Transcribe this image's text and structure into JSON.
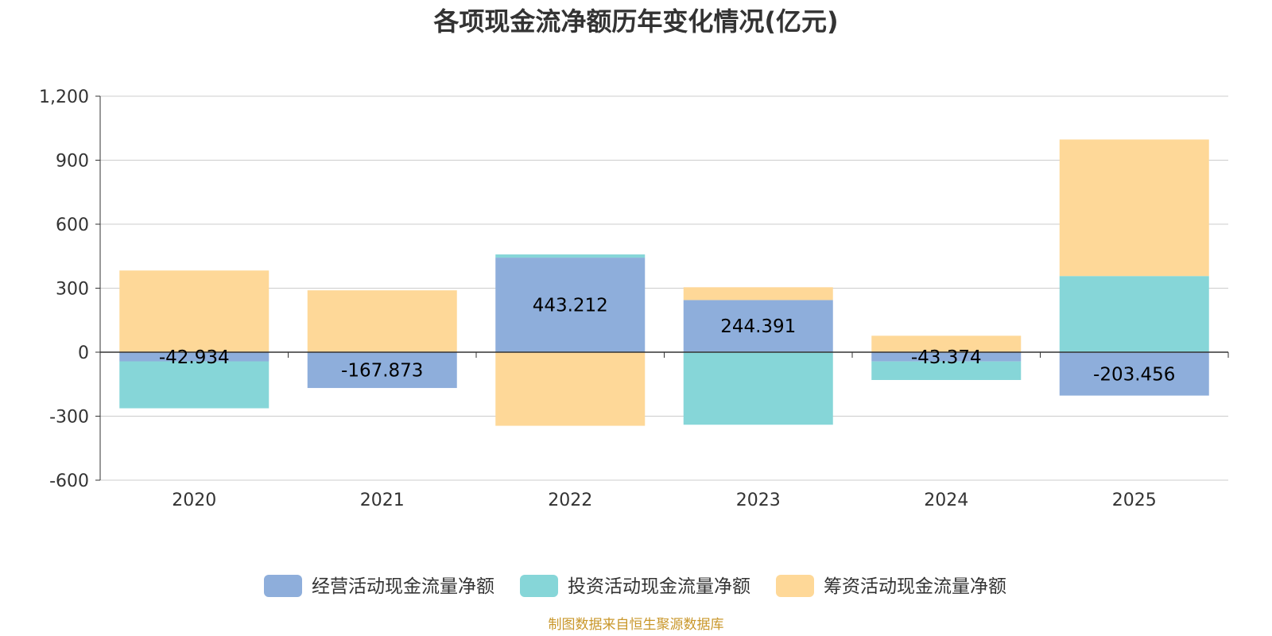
{
  "chart_data": {
    "type": "bar",
    "stacked": true,
    "title": "各项现金流净额历年变化情况(亿元)",
    "categories": [
      "2020",
      "2021",
      "2022",
      "2023",
      "2024",
      "2025"
    ],
    "series": [
      {
        "name": "经营活动现金流量净额",
        "color": "#8eaedb",
        "values": [
          -42.934,
          -167.873,
          443.212,
          244.391,
          -43.374,
          -203.456
        ]
      },
      {
        "name": "投资活动现金流量净额",
        "color": "#86d6d8",
        "values": [
          -220,
          0,
          15,
          -340,
          -87,
          357
        ]
      },
      {
        "name": "筹资活动现金流量净额",
        "color": "#fed898",
        "values": [
          383,
          290,
          -345,
          60,
          77,
          640
        ]
      }
    ],
    "data_labels": [
      "-42.934",
      "-167.873",
      "443.212",
      "244.391",
      "-43.374",
      "-203.456"
    ],
    "ylim": [
      -600,
      1200
    ],
    "yticks": [
      -600,
      -300,
      0,
      300,
      600,
      900,
      1200
    ],
    "ytick_labels": [
      "-600",
      "-300",
      "0",
      "300",
      "600",
      "900",
      "1,200"
    ],
    "grid": true,
    "legend_position": "bottom",
    "source": "制图数据来自恒生聚源数据库"
  }
}
